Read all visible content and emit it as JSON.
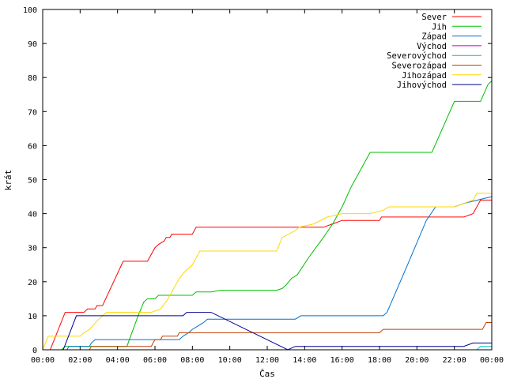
{
  "chart_data": {
    "type": "line",
    "xlabel": "Čas",
    "ylabel": "krát",
    "xlim": [
      0,
      24
    ],
    "ylim": [
      0,
      100
    ],
    "yticks": [
      0,
      10,
      20,
      30,
      40,
      50,
      60,
      70,
      80,
      90,
      100
    ],
    "xticks": [
      {
        "value": 0,
        "label": "00:00"
      },
      {
        "value": 2,
        "label": "02:00"
      },
      {
        "value": 4,
        "label": "04:00"
      },
      {
        "value": 6,
        "label": "06:00"
      },
      {
        "value": 8,
        "label": "08:00"
      },
      {
        "value": 10,
        "label": "10:00"
      },
      {
        "value": 12,
        "label": "12:00"
      },
      {
        "value": 14,
        "label": "14:00"
      },
      {
        "value": 16,
        "label": "16:00"
      },
      {
        "value": 18,
        "label": "18:00"
      },
      {
        "value": 20,
        "label": "20:00"
      },
      {
        "value": 22,
        "label": "22:00"
      },
      {
        "value": 24,
        "label": "00:00"
      }
    ],
    "grid": false,
    "legend_position": "top-right",
    "series": [
      {
        "name": "Sever",
        "color": "#ff0000",
        "points": [
          [
            0,
            0
          ],
          [
            0.4,
            0
          ],
          [
            1.2,
            11
          ],
          [
            2.2,
            11
          ],
          [
            2.4,
            12
          ],
          [
            2.8,
            12
          ],
          [
            2.9,
            13
          ],
          [
            3.2,
            13
          ],
          [
            4.3,
            26
          ],
          [
            5.6,
            26
          ],
          [
            6.0,
            30
          ],
          [
            6.2,
            31
          ],
          [
            6.5,
            32
          ],
          [
            6.6,
            33
          ],
          [
            6.8,
            33
          ],
          [
            6.9,
            34
          ],
          [
            8.0,
            34
          ],
          [
            8.1,
            35
          ],
          [
            8.2,
            36
          ],
          [
            15.0,
            36
          ],
          [
            15.5,
            37
          ],
          [
            16.0,
            38
          ],
          [
            18.0,
            38
          ],
          [
            18.1,
            39
          ],
          [
            20.5,
            39
          ],
          [
            22.5,
            39
          ],
          [
            23.0,
            40
          ],
          [
            23.2,
            42
          ],
          [
            23.4,
            44
          ],
          [
            24,
            44
          ]
        ]
      },
      {
        "name": "Jih",
        "color": "#00c000",
        "points": [
          [
            0,
            0
          ],
          [
            1.0,
            0
          ],
          [
            1.2,
            1
          ],
          [
            2.5,
            1
          ],
          [
            4.5,
            1
          ],
          [
            5.1,
            10
          ],
          [
            5.4,
            14
          ],
          [
            5.6,
            15
          ],
          [
            6.0,
            15
          ],
          [
            6.2,
            16
          ],
          [
            8.0,
            16
          ],
          [
            8.2,
            17
          ],
          [
            9.0,
            17
          ],
          [
            9.5,
            17.5
          ],
          [
            12.5,
            17.5
          ],
          [
            12.8,
            18
          ],
          [
            13.0,
            19
          ],
          [
            13.3,
            21
          ],
          [
            13.6,
            22
          ],
          [
            14.2,
            27
          ],
          [
            14.6,
            30
          ],
          [
            15.0,
            33
          ],
          [
            15.5,
            37
          ],
          [
            16.0,
            42
          ],
          [
            16.5,
            48
          ],
          [
            17.0,
            53
          ],
          [
            17.5,
            58
          ],
          [
            20.8,
            58
          ],
          [
            22.0,
            73
          ],
          [
            23.4,
            73
          ],
          [
            23.8,
            78
          ],
          [
            24,
            79
          ]
        ]
      },
      {
        "name": "Západ",
        "color": "#0070d0",
        "points": [
          [
            0,
            0
          ],
          [
            1.3,
            0
          ],
          [
            1.4,
            1
          ],
          [
            2.5,
            1
          ],
          [
            2.6,
            2
          ],
          [
            2.8,
            3
          ],
          [
            4.3,
            3
          ],
          [
            5.0,
            3
          ],
          [
            7.3,
            3
          ],
          [
            7.5,
            4
          ],
          [
            7.8,
            5
          ],
          [
            8.0,
            6
          ],
          [
            8.3,
            7
          ],
          [
            8.6,
            8
          ],
          [
            8.8,
            9
          ],
          [
            9.0,
            9
          ],
          [
            11.5,
            9
          ],
          [
            13.5,
            9
          ],
          [
            13.8,
            10
          ],
          [
            16.0,
            10
          ],
          [
            18.2,
            10
          ],
          [
            18.4,
            11
          ],
          [
            19.5,
            25
          ],
          [
            20.5,
            38
          ],
          [
            21.0,
            42
          ],
          [
            22.0,
            42
          ],
          [
            22.5,
            43
          ],
          [
            24,
            45
          ]
        ]
      },
      {
        "name": "Východ",
        "color": "#c000c0",
        "points": [
          [
            0,
            0
          ],
          [
            24,
            0
          ]
        ]
      },
      {
        "name": "Severovýchod",
        "color": "#00c0c0",
        "points": [
          [
            0,
            0
          ],
          [
            23.2,
            0
          ],
          [
            23.4,
            1
          ],
          [
            24,
            1
          ]
        ]
      },
      {
        "name": "Severozápad",
        "color": "#c04000",
        "points": [
          [
            0,
            0
          ],
          [
            2.5,
            0
          ],
          [
            2.6,
            1
          ],
          [
            5.8,
            1
          ],
          [
            5.9,
            2
          ],
          [
            6.0,
            3
          ],
          [
            6.3,
            3
          ],
          [
            6.4,
            4
          ],
          [
            7.2,
            4
          ],
          [
            7.3,
            5
          ],
          [
            18.0,
            5
          ],
          [
            18.2,
            6
          ],
          [
            23.5,
            6
          ],
          [
            23.7,
            8
          ],
          [
            24,
            8
          ]
        ]
      },
      {
        "name": "Jihozápad",
        "color": "#ffd700",
        "points": [
          [
            0,
            0
          ],
          [
            0.3,
            4
          ],
          [
            2.0,
            4
          ],
          [
            2.2,
            5
          ],
          [
            2.5,
            6
          ],
          [
            3.0,
            9
          ],
          [
            3.2,
            10
          ],
          [
            3.4,
            11
          ],
          [
            5.8,
            11
          ],
          [
            6.3,
            12
          ],
          [
            6.7,
            15
          ],
          [
            7.0,
            18
          ],
          [
            7.3,
            21
          ],
          [
            7.6,
            23
          ],
          [
            8.0,
            25
          ],
          [
            8.2,
            27
          ],
          [
            8.4,
            29
          ],
          [
            9.0,
            29
          ],
          [
            12.5,
            29
          ],
          [
            12.8,
            33
          ],
          [
            13.5,
            35
          ],
          [
            13.7,
            36
          ],
          [
            14.5,
            37
          ],
          [
            15.2,
            39
          ],
          [
            16.0,
            40
          ],
          [
            17.5,
            40
          ],
          [
            18.2,
            41
          ],
          [
            18.5,
            42
          ],
          [
            22.0,
            42
          ],
          [
            22.5,
            43
          ],
          [
            23.0,
            44
          ],
          [
            23.2,
            46
          ],
          [
            24,
            46
          ]
        ]
      },
      {
        "name": "Jihovýchod",
        "color": "#000090",
        "points": [
          [
            0,
            0
          ],
          [
            1.1,
            0
          ],
          [
            1.8,
            10
          ],
          [
            3.8,
            10
          ],
          [
            7.5,
            10
          ],
          [
            7.7,
            11
          ],
          [
            9.0,
            11
          ],
          [
            13.1,
            0
          ],
          [
            13.5,
            1
          ],
          [
            22.0,
            1
          ],
          [
            22.5,
            1
          ],
          [
            23.0,
            2
          ],
          [
            24,
            2
          ]
        ]
      }
    ]
  }
}
